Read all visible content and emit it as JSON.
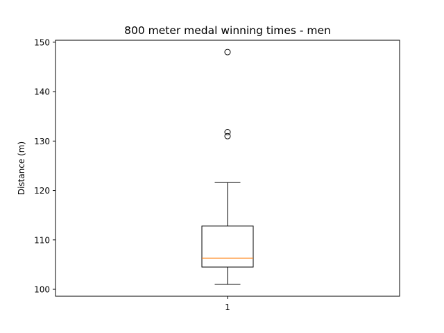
{
  "chart_data": {
    "type": "box",
    "title": "800 meter medal winning times - men",
    "xlabel": "",
    "ylabel": "Distance (m)",
    "ylim": [
      98.6,
      150.4
    ],
    "yticks": [
      100,
      110,
      120,
      130,
      140,
      150
    ],
    "categories": [
      "1"
    ],
    "grid": false,
    "boxes": [
      {
        "category": "1",
        "whisker_low": 101.0,
        "q1": 104.5,
        "median": 106.3,
        "q3": 112.8,
        "whisker_high": 121.6,
        "outliers": [
          131.0,
          131.8,
          148.0
        ]
      }
    ],
    "colors": {
      "median": "#ff7f0e",
      "box": "#000000"
    }
  }
}
